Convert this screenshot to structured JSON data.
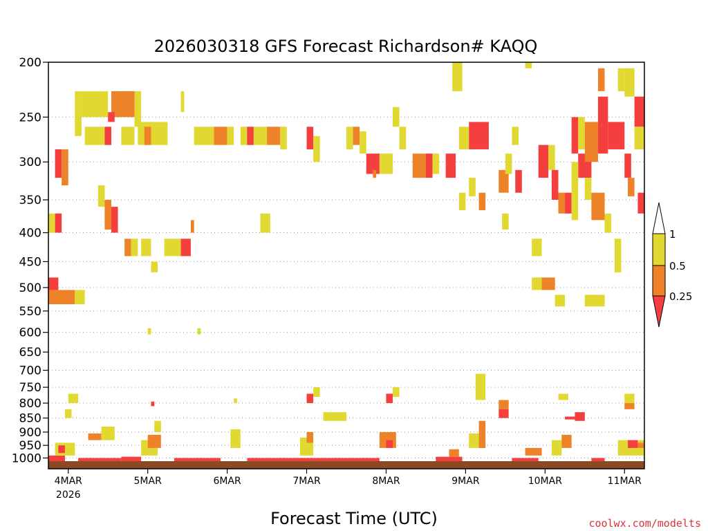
{
  "chart_data": {
    "type": "heatmap",
    "title": "2026030318 GFS Forecast Richardson# KAQQ",
    "xlabel": "Forecast Time (UTC)",
    "ylabel": "",
    "x_ticks": [
      {
        "label": "4MAR",
        "sublabel": "2026",
        "hour": 6
      },
      {
        "label": "5MAR",
        "sublabel": "",
        "hour": 30
      },
      {
        "label": "6MAR",
        "sublabel": "",
        "hour": 54
      },
      {
        "label": "7MAR",
        "sublabel": "",
        "hour": 78
      },
      {
        "label": "8MAR",
        "sublabel": "",
        "hour": 102
      },
      {
        "label": "9MAR",
        "sublabel": "",
        "hour": 126
      },
      {
        "label": "10MAR",
        "sublabel": "",
        "hour": 150
      },
      {
        "label": "11MAR",
        "sublabel": "",
        "hour": 174
      }
    ],
    "x_range_hours": [
      0,
      180
    ],
    "y_ticks": [
      200,
      250,
      300,
      350,
      400,
      450,
      500,
      550,
      600,
      650,
      700,
      750,
      800,
      850,
      900,
      950,
      1000
    ],
    "y_range_hpa": [
      200,
      1013
    ],
    "legend": {
      "position": "right",
      "levels": [
        "1",
        "0.5",
        "0.25"
      ],
      "colors": {
        "0.5-1": "#e1d832",
        "0.25-0.5": "#ee8229",
        "<0.25": "#f53f3f"
      }
    },
    "ground_color": "#8b4a24",
    "grid_color": "#999999",
    "cells": [
      {
        "t0": 0,
        "t1": 3,
        "p0": 480,
        "p1": 505,
        "c": "red"
      },
      {
        "t0": 0,
        "t1": 8,
        "p0": 505,
        "p1": 535,
        "c": "orange"
      },
      {
        "t0": 8,
        "t1": 11,
        "p0": 505,
        "p1": 535,
        "c": "yellow"
      },
      {
        "t0": 2,
        "t1": 4,
        "p0": 285,
        "p1": 320,
        "c": "red"
      },
      {
        "t0": 4,
        "t1": 6,
        "p0": 285,
        "p1": 330,
        "c": "orange"
      },
      {
        "t0": 0,
        "t1": 2,
        "p0": 370,
        "p1": 400,
        "c": "yellow"
      },
      {
        "t0": 2,
        "t1": 4,
        "p0": 370,
        "p1": 400,
        "c": "red"
      },
      {
        "t0": 8,
        "t1": 10,
        "p0": 225,
        "p1": 270,
        "c": "yellow"
      },
      {
        "t0": 10,
        "t1": 18,
        "p0": 225,
        "p1": 250,
        "c": "yellow"
      },
      {
        "t0": 11,
        "t1": 17,
        "p0": 260,
        "p1": 280,
        "c": "yellow"
      },
      {
        "t0": 17,
        "t1": 19,
        "p0": 260,
        "p1": 280,
        "c": "red"
      },
      {
        "t0": 19,
        "t1": 26,
        "p0": 225,
        "p1": 250,
        "c": "orange"
      },
      {
        "t0": 18,
        "t1": 20,
        "p0": 245,
        "p1": 255,
        "c": "red"
      },
      {
        "t0": 26,
        "t1": 28,
        "p0": 225,
        "p1": 260,
        "c": "yellow"
      },
      {
        "t0": 27,
        "t1": 36,
        "p0": 255,
        "p1": 280,
        "c": "yellow"
      },
      {
        "t0": 29,
        "t1": 31,
        "p0": 260,
        "p1": 280,
        "c": "orange"
      },
      {
        "t0": 22,
        "t1": 26,
        "p0": 260,
        "p1": 280,
        "c": "yellow"
      },
      {
        "t0": 40,
        "t1": 41,
        "p0": 225,
        "p1": 245,
        "c": "yellow"
      },
      {
        "t0": 44,
        "t1": 50,
        "p0": 260,
        "p1": 280,
        "c": "yellow"
      },
      {
        "t0": 50,
        "t1": 54,
        "p0": 260,
        "p1": 280,
        "c": "orange"
      },
      {
        "t0": 54,
        "t1": 56,
        "p0": 260,
        "p1": 280,
        "c": "yellow"
      },
      {
        "t0": 58,
        "t1": 60,
        "p0": 260,
        "p1": 280,
        "c": "yellow"
      },
      {
        "t0": 60,
        "t1": 62,
        "p0": 260,
        "p1": 280,
        "c": "red"
      },
      {
        "t0": 62,
        "t1": 66,
        "p0": 260,
        "p1": 280,
        "c": "yellow"
      },
      {
        "t0": 66,
        "t1": 70,
        "p0": 260,
        "p1": 280,
        "c": "orange"
      },
      {
        "t0": 70,
        "t1": 72,
        "p0": 260,
        "p1": 285,
        "c": "yellow"
      },
      {
        "t0": 78,
        "t1": 80,
        "p0": 260,
        "p1": 285,
        "c": "red"
      },
      {
        "t0": 80,
        "t1": 82,
        "p0": 270,
        "p1": 300,
        "c": "yellow"
      },
      {
        "t0": 90,
        "t1": 92,
        "p0": 260,
        "p1": 285,
        "c": "yellow"
      },
      {
        "t0": 92,
        "t1": 94,
        "p0": 260,
        "p1": 280,
        "c": "orange"
      },
      {
        "t0": 94,
        "t1": 96,
        "p0": 265,
        "p1": 290,
        "c": "yellow"
      },
      {
        "t0": 96,
        "t1": 100,
        "p0": 290,
        "p1": 315,
        "c": "red"
      },
      {
        "t0": 100,
        "t1": 104,
        "p0": 290,
        "p1": 315,
        "c": "yellow"
      },
      {
        "t0": 98,
        "t1": 99,
        "p0": 310,
        "p1": 320,
        "c": "orange"
      },
      {
        "t0": 104,
        "t1": 106,
        "p0": 240,
        "p1": 260,
        "c": "yellow"
      },
      {
        "t0": 106,
        "t1": 108,
        "p0": 260,
        "p1": 285,
        "c": "yellow"
      },
      {
        "t0": 110,
        "t1": 114,
        "p0": 290,
        "p1": 320,
        "c": "orange"
      },
      {
        "t0": 114,
        "t1": 116,
        "p0": 290,
        "p1": 320,
        "c": "red"
      },
      {
        "t0": 116,
        "t1": 118,
        "p0": 290,
        "p1": 315,
        "c": "yellow"
      },
      {
        "t0": 120,
        "t1": 123,
        "p0": 290,
        "p1": 320,
        "c": "red"
      },
      {
        "t0": 122,
        "t1": 125,
        "p0": 200,
        "p1": 225,
        "c": "yellow"
      },
      {
        "t0": 124,
        "t1": 127,
        "p0": 260,
        "p1": 285,
        "c": "yellow"
      },
      {
        "t0": 127,
        "t1": 133,
        "p0": 255,
        "p1": 285,
        "c": "red"
      },
      {
        "t0": 124,
        "t1": 126,
        "p0": 340,
        "p1": 365,
        "c": "yellow"
      },
      {
        "t0": 127,
        "t1": 129,
        "p0": 320,
        "p1": 345,
        "c": "yellow"
      },
      {
        "t0": 130,
        "t1": 132,
        "p0": 340,
        "p1": 365,
        "c": "orange"
      },
      {
        "t0": 136,
        "t1": 139,
        "p0": 310,
        "p1": 340,
        "c": "orange"
      },
      {
        "t0": 140,
        "t1": 142,
        "p0": 260,
        "p1": 280,
        "c": "yellow"
      },
      {
        "t0": 138,
        "t1": 140,
        "p0": 290,
        "p1": 315,
        "c": "yellow"
      },
      {
        "t0": 141,
        "t1": 143,
        "p0": 310,
        "p1": 340,
        "c": "red"
      },
      {
        "t0": 137,
        "t1": 139,
        "p0": 370,
        "p1": 395,
        "c": "yellow"
      },
      {
        "t0": 144,
        "t1": 146,
        "p0": 200,
        "p1": 205,
        "c": "yellow"
      },
      {
        "t0": 148,
        "t1": 151,
        "p0": 280,
        "p1": 320,
        "c": "red"
      },
      {
        "t0": 151,
        "t1": 153,
        "p0": 280,
        "p1": 310,
        "c": "yellow"
      },
      {
        "t0": 152,
        "t1": 154,
        "p0": 310,
        "p1": 350,
        "c": "red"
      },
      {
        "t0": 154,
        "t1": 156,
        "p0": 340,
        "p1": 370,
        "c": "orange"
      },
      {
        "t0": 156,
        "t1": 158,
        "p0": 340,
        "p1": 370,
        "c": "red"
      },
      {
        "t0": 158,
        "t1": 160,
        "p0": 250,
        "p1": 290,
        "c": "red"
      },
      {
        "t0": 160,
        "t1": 164,
        "p0": 290,
        "p1": 320,
        "c": "red"
      },
      {
        "t0": 160,
        "t1": 162,
        "p0": 250,
        "p1": 285,
        "c": "yellow"
      },
      {
        "t0": 162,
        "t1": 166,
        "p0": 255,
        "p1": 300,
        "c": "orange"
      },
      {
        "t0": 158,
        "t1": 160,
        "p0": 300,
        "p1": 380,
        "c": "yellow"
      },
      {
        "t0": 162,
        "t1": 164,
        "p0": 320,
        "p1": 350,
        "c": "yellow"
      },
      {
        "t0": 164,
        "t1": 168,
        "p0": 340,
        "p1": 380,
        "c": "orange"
      },
      {
        "t0": 166,
        "t1": 168,
        "p0": 205,
        "p1": 225,
        "c": "orange"
      },
      {
        "t0": 166,
        "t1": 169,
        "p0": 230,
        "p1": 290,
        "c": "red"
      },
      {
        "t0": 169,
        "t1": 174,
        "p0": 255,
        "p1": 285,
        "c": "red"
      },
      {
        "t0": 172,
        "t1": 174,
        "p0": 205,
        "p1": 225,
        "c": "yellow"
      },
      {
        "t0": 174,
        "t1": 177,
        "p0": 205,
        "p1": 230,
        "c": "yellow"
      },
      {
        "t0": 177,
        "t1": 180,
        "p0": 230,
        "p1": 260,
        "c": "red"
      },
      {
        "t0": 177,
        "t1": 180,
        "p0": 260,
        "p1": 285,
        "c": "yellow"
      },
      {
        "t0": 174,
        "t1": 176,
        "p0": 290,
        "p1": 320,
        "c": "red"
      },
      {
        "t0": 175,
        "t1": 177,
        "p0": 320,
        "p1": 345,
        "c": "orange"
      },
      {
        "t0": 178,
        "t1": 180,
        "p0": 340,
        "p1": 370,
        "c": "red"
      },
      {
        "t0": 168,
        "t1": 170,
        "p0": 370,
        "p1": 400,
        "c": "yellow"
      },
      {
        "t0": 171,
        "t1": 173,
        "p0": 410,
        "p1": 470,
        "c": "yellow"
      },
      {
        "t0": 15,
        "t1": 17,
        "p0": 330,
        "p1": 360,
        "c": "yellow"
      },
      {
        "t0": 17,
        "t1": 19,
        "p0": 350,
        "p1": 395,
        "c": "orange"
      },
      {
        "t0": 19,
        "t1": 21,
        "p0": 360,
        "p1": 400,
        "c": "red"
      },
      {
        "t0": 23,
        "t1": 25,
        "p0": 410,
        "p1": 440,
        "c": "orange"
      },
      {
        "t0": 25,
        "t1": 27,
        "p0": 410,
        "p1": 440,
        "c": "yellow"
      },
      {
        "t0": 28,
        "t1": 31,
        "p0": 410,
        "p1": 440,
        "c": "yellow"
      },
      {
        "t0": 31,
        "t1": 33,
        "p0": 450,
        "p1": 470,
        "c": "yellow"
      },
      {
        "t0": 35,
        "t1": 40,
        "p0": 410,
        "p1": 440,
        "c": "yellow"
      },
      {
        "t0": 40,
        "t1": 43,
        "p0": 410,
        "p1": 440,
        "c": "red"
      },
      {
        "t0": 43,
        "t1": 44,
        "p0": 380,
        "p1": 400,
        "c": "orange"
      },
      {
        "t0": 64,
        "t1": 67,
        "p0": 370,
        "p1": 400,
        "c": "yellow"
      },
      {
        "t0": 146,
        "t1": 149,
        "p0": 410,
        "p1": 440,
        "c": "yellow"
      },
      {
        "t0": 146,
        "t1": 149,
        "p0": 480,
        "p1": 505,
        "c": "yellow"
      },
      {
        "t0": 149,
        "t1": 153,
        "p0": 480,
        "p1": 505,
        "c": "orange"
      },
      {
        "t0": 153,
        "t1": 156,
        "p0": 515,
        "p1": 540,
        "c": "yellow"
      },
      {
        "t0": 162,
        "t1": 168,
        "p0": 515,
        "p1": 540,
        "c": "yellow"
      },
      {
        "t0": 30,
        "t1": 31,
        "p0": 590,
        "p1": 605,
        "c": "yellow"
      },
      {
        "t0": 45,
        "t1": 46,
        "p0": 590,
        "p1": 605,
        "c": "yellow"
      },
      {
        "t0": 6,
        "t1": 9,
        "p0": 770,
        "p1": 800,
        "c": "yellow"
      },
      {
        "t0": 5,
        "t1": 7,
        "p0": 820,
        "p1": 850,
        "c": "yellow"
      },
      {
        "t0": 31,
        "t1": 32,
        "p0": 795,
        "p1": 810,
        "c": "red"
      },
      {
        "t0": 56,
        "t1": 57,
        "p0": 785,
        "p1": 800,
        "c": "yellow"
      },
      {
        "t0": 78,
        "t1": 80,
        "p0": 770,
        "p1": 800,
        "c": "red"
      },
      {
        "t0": 80,
        "t1": 82,
        "p0": 750,
        "p1": 780,
        "c": "yellow"
      },
      {
        "t0": 83,
        "t1": 90,
        "p0": 830,
        "p1": 860,
        "c": "yellow"
      },
      {
        "t0": 102,
        "t1": 104,
        "p0": 770,
        "p1": 800,
        "c": "red"
      },
      {
        "t0": 104,
        "t1": 106,
        "p0": 750,
        "p1": 780,
        "c": "yellow"
      },
      {
        "t0": 129,
        "t1": 132,
        "p0": 710,
        "p1": 790,
        "c": "yellow"
      },
      {
        "t0": 136,
        "t1": 139,
        "p0": 790,
        "p1": 820,
        "c": "orange"
      },
      {
        "t0": 136,
        "t1": 139,
        "p0": 820,
        "p1": 850,
        "c": "red"
      },
      {
        "t0": 154,
        "t1": 157,
        "p0": 770,
        "p1": 790,
        "c": "yellow"
      },
      {
        "t0": 156,
        "t1": 159,
        "p0": 845,
        "p1": 855,
        "c": "red"
      },
      {
        "t0": 159,
        "t1": 162,
        "p0": 830,
        "p1": 860,
        "c": "red"
      },
      {
        "t0": 174,
        "t1": 177,
        "p0": 770,
        "p1": 800,
        "c": "yellow"
      },
      {
        "t0": 174,
        "t1": 177,
        "p0": 800,
        "p1": 820,
        "c": "orange"
      },
      {
        "t0": 0,
        "t1": 5,
        "p0": 990,
        "p1": 1013,
        "c": "red"
      },
      {
        "t0": 2,
        "t1": 8,
        "p0": 940,
        "p1": 990,
        "c": "yellow"
      },
      {
        "t0": 3,
        "t1": 5,
        "p0": 950,
        "p1": 980,
        "c": "red"
      },
      {
        "t0": 9,
        "t1": 22,
        "p0": 1000,
        "p1": 1013,
        "c": "red"
      },
      {
        "t0": 12,
        "t1": 16,
        "p0": 905,
        "p1": 930,
        "c": "orange"
      },
      {
        "t0": 16,
        "t1": 20,
        "p0": 880,
        "p1": 930,
        "c": "yellow"
      },
      {
        "t0": 22,
        "t1": 28,
        "p0": 995,
        "p1": 1013,
        "c": "red"
      },
      {
        "t0": 28,
        "t1": 33,
        "p0": 930,
        "p1": 990,
        "c": "yellow"
      },
      {
        "t0": 30,
        "t1": 34,
        "p0": 910,
        "p1": 960,
        "c": "orange"
      },
      {
        "t0": 32,
        "t1": 34,
        "p0": 860,
        "p1": 900,
        "c": "yellow"
      },
      {
        "t0": 38,
        "t1": 52,
        "p0": 1000,
        "p1": 1013,
        "c": "red"
      },
      {
        "t0": 55,
        "t1": 58,
        "p0": 890,
        "p1": 960,
        "c": "yellow"
      },
      {
        "t0": 60,
        "t1": 80,
        "p0": 1000,
        "p1": 1013,
        "c": "red"
      },
      {
        "t0": 76,
        "t1": 80,
        "p0": 920,
        "p1": 990,
        "c": "yellow"
      },
      {
        "t0": 78,
        "t1": 80,
        "p0": 900,
        "p1": 940,
        "c": "orange"
      },
      {
        "t0": 80,
        "t1": 100,
        "p0": 1000,
        "p1": 1013,
        "c": "red"
      },
      {
        "t0": 100,
        "t1": 105,
        "p0": 900,
        "p1": 960,
        "c": "orange"
      },
      {
        "t0": 102,
        "t1": 104,
        "p0": 930,
        "p1": 960,
        "c": "red"
      },
      {
        "t0": 117,
        "t1": 125,
        "p0": 995,
        "p1": 1013,
        "c": "red"
      },
      {
        "t0": 121,
        "t1": 124,
        "p0": 965,
        "p1": 995,
        "c": "orange"
      },
      {
        "t0": 127,
        "t1": 132,
        "p0": 905,
        "p1": 960,
        "c": "yellow"
      },
      {
        "t0": 130,
        "t1": 132,
        "p0": 860,
        "p1": 960,
        "c": "orange"
      },
      {
        "t0": 140,
        "t1": 148,
        "p0": 1000,
        "p1": 1013,
        "c": "red"
      },
      {
        "t0": 144,
        "t1": 149,
        "p0": 960,
        "p1": 990,
        "c": "orange"
      },
      {
        "t0": 152,
        "t1": 155,
        "p0": 930,
        "p1": 990,
        "c": "yellow"
      },
      {
        "t0": 155,
        "t1": 158,
        "p0": 910,
        "p1": 960,
        "c": "orange"
      },
      {
        "t0": 164,
        "t1": 168,
        "p0": 1000,
        "p1": 1013,
        "c": "red"
      },
      {
        "t0": 172,
        "t1": 180,
        "p0": 930,
        "p1": 990,
        "c": "yellow"
      },
      {
        "t0": 175,
        "t1": 178,
        "p0": 930,
        "p1": 960,
        "c": "red"
      },
      {
        "t0": 178,
        "t1": 180,
        "p0": 940,
        "p1": 960,
        "c": "orange"
      }
    ]
  },
  "credit": "coolwx.com/modelts"
}
